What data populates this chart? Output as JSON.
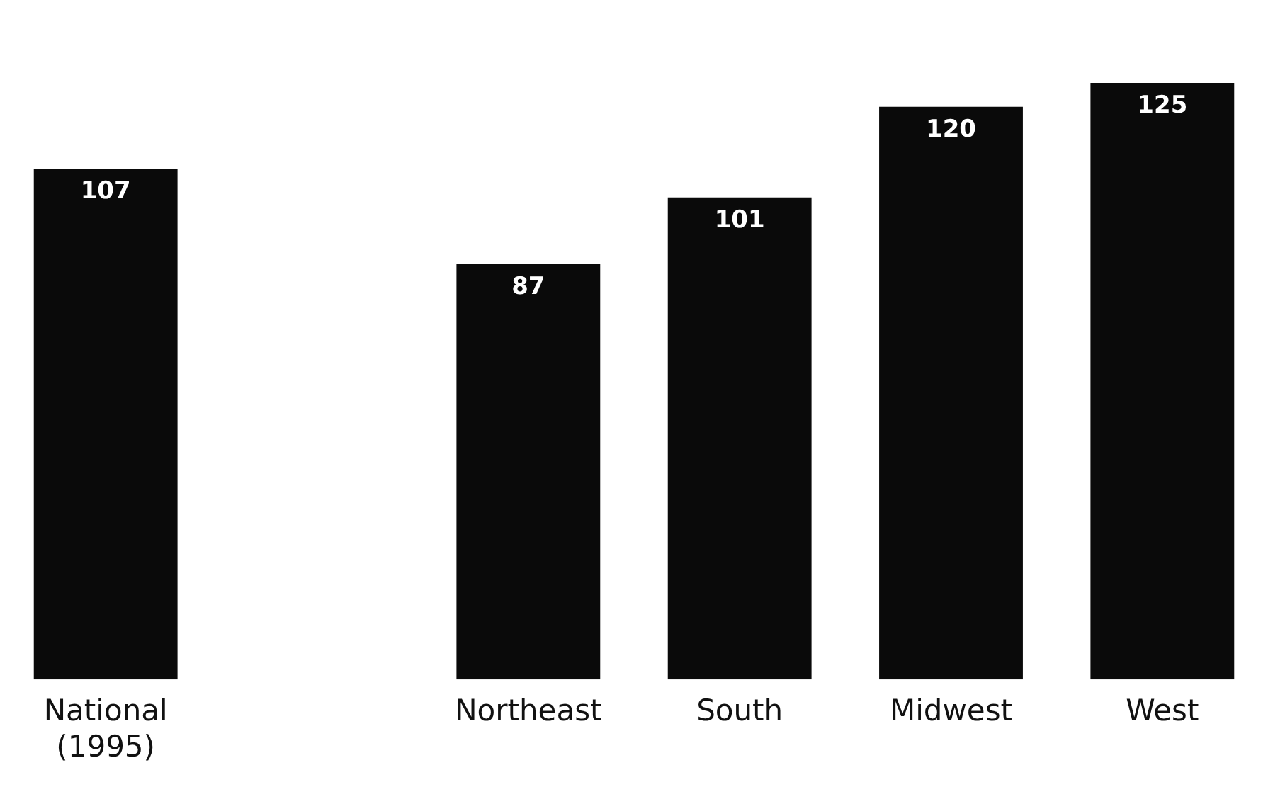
{
  "chart_data": {
    "type": "bar",
    "categories": [
      "National\n(1995)",
      null,
      "Northeast",
      "South",
      "Midwest",
      "West"
    ],
    "values": [
      107,
      null,
      87,
      101,
      120,
      125
    ],
    "color": "#0a0a0a",
    "data_labels": true,
    "grid": false,
    "legend": false
  }
}
